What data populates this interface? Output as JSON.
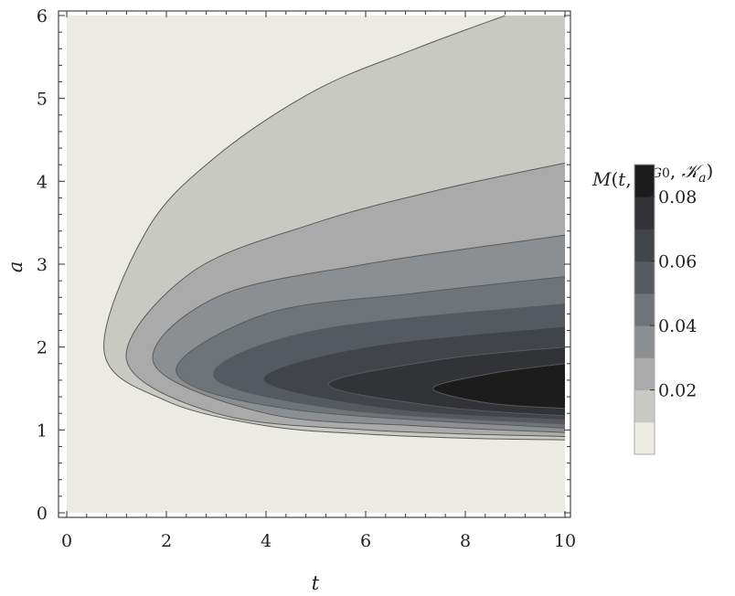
{
  "chart_data": {
    "type": "contour",
    "xlabel": "t",
    "ylabel": "a",
    "xlim": [
      0,
      10
    ],
    "ylim": [
      0,
      6
    ],
    "x_ticks": [
      "0",
      "2",
      "4",
      "6",
      "8",
      "10"
    ],
    "y_ticks": [
      "0",
      "1",
      "2",
      "3",
      "4",
      "5",
      "6"
    ],
    "legend_title": "M(t, ψ0G, 𝒦a)",
    "legend_title_parts": {
      "func": "M",
      "t": "t",
      "psi": "ψ",
      "sub": "0",
      "sup": "G",
      "K": "𝒦",
      "Ksub": "a"
    },
    "colorbar": {
      "ticks": [
        "0.02",
        "0.04",
        "0.06",
        "0.08"
      ],
      "tick_values": [
        0.02,
        0.04,
        0.06,
        0.08
      ],
      "range": [
        0,
        0.09
      ],
      "levels": [
        0.01,
        0.02,
        0.03,
        0.04,
        0.05,
        0.06,
        0.07,
        0.08
      ],
      "colors": [
        "#ebebe3",
        "#c9c9c4",
        "#a9aaa9",
        "#8c8f91",
        "#6f7478",
        "#545a60",
        "#414549",
        "#313336",
        "#1c1c1c"
      ]
    },
    "contours": [
      {
        "level": 0.01,
        "tip": [
          0.75,
          1.95
        ],
        "lower": [
          [
            2,
            1.35
          ],
          [
            4,
            1.05
          ],
          [
            6,
            0.95
          ],
          [
            8,
            0.9
          ],
          [
            10,
            0.88
          ]
        ],
        "upper": [
          [
            1.6,
            3.4
          ],
          [
            3,
            4.3
          ],
          [
            5,
            5.1
          ],
          [
            7,
            5.6
          ],
          [
            8.8,
            6.0
          ]
        ]
      },
      {
        "level": 0.02,
        "tip": [
          1.2,
          1.85
        ],
        "lower": [
          [
            3,
            1.2
          ],
          [
            6,
            1.0
          ],
          [
            10,
            0.92
          ]
        ],
        "upper": [
          [
            2.5,
            2.9
          ],
          [
            5,
            3.5
          ],
          [
            7.5,
            3.9
          ],
          [
            10,
            4.22
          ]
        ]
      },
      {
        "level": 0.03,
        "tip": [
          1.75,
          1.8
        ],
        "lower": [
          [
            4,
            1.2
          ],
          [
            7,
            1.05
          ],
          [
            10,
            0.97
          ]
        ],
        "upper": [
          [
            3,
            2.6
          ],
          [
            6,
            3.0
          ],
          [
            10,
            3.35
          ]
        ]
      },
      {
        "level": 0.04,
        "tip": [
          2.2,
          1.7
        ],
        "lower": [
          [
            4.5,
            1.25
          ],
          [
            10,
            1.02
          ]
        ],
        "upper": [
          [
            4,
            2.4
          ],
          [
            7,
            2.65
          ],
          [
            10,
            2.85
          ]
        ]
      },
      {
        "level": 0.05,
        "tip": [
          2.95,
          1.65
        ],
        "lower": [
          [
            5.5,
            1.25
          ],
          [
            10,
            1.07
          ]
        ],
        "upper": [
          [
            5,
            2.2
          ],
          [
            10,
            2.52
          ]
        ]
      },
      {
        "level": 0.06,
        "tip": [
          3.95,
          1.6
        ],
        "lower": [
          [
            6.5,
            1.25
          ],
          [
            10,
            1.12
          ]
        ],
        "upper": [
          [
            6,
            2.0
          ],
          [
            10,
            2.25
          ]
        ]
      },
      {
        "level": 0.07,
        "tip": [
          5.25,
          1.55
        ],
        "lower": [
          [
            7.5,
            1.28
          ],
          [
            10,
            1.17
          ]
        ],
        "upper": [
          [
            7.5,
            1.85
          ],
          [
            10,
            2.0
          ]
        ]
      },
      {
        "level": 0.08,
        "tip": [
          7.35,
          1.5
        ],
        "lower": [
          [
            8.5,
            1.32
          ],
          [
            10,
            1.26
          ]
        ],
        "upper": [
          [
            8.5,
            1.68
          ],
          [
            10,
            1.8
          ]
        ]
      }
    ]
  }
}
